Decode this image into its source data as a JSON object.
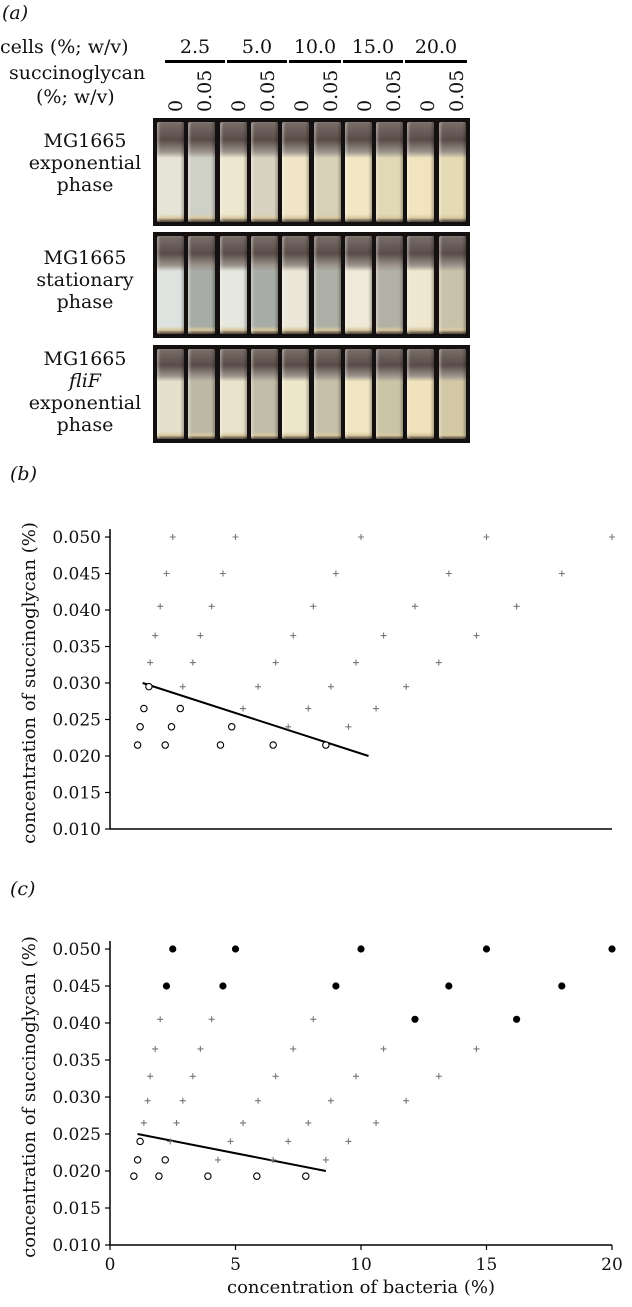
{
  "panel_a": {
    "letter": "(a)",
    "cells_label": "cells (%; w/v)",
    "succ_label_line1": "succinoglycan",
    "succ_label_line2": "(%; w/v)",
    "cell_concs": [
      "2.5",
      "5.0",
      "10.0",
      "15.0",
      "20.0"
    ],
    "succ_concs": [
      "0",
      "0.05"
    ],
    "rows": [
      {
        "line1": "MG1665",
        "line2": "exponential",
        "line3": "phase",
        "line2_italic": false
      },
      {
        "line1": "MG1665",
        "line2": "stationary",
        "line3": "phase",
        "line2_italic": false
      },
      {
        "line1": "MG1665",
        "line2": "fliF",
        "line3": "exponential",
        "line4": "phase",
        "line2_italic": true
      }
    ]
  },
  "chart_data": [
    {
      "type": "scatter",
      "panel": "(b)",
      "title": "",
      "xlabel": "",
      "ylabel": "concentration of succinoglycan (%)",
      "xlim": [
        0,
        20
      ],
      "ylim": [
        0.01,
        0.05
      ],
      "yticks": [
        "0.050",
        "0.045",
        "0.040",
        "0.035",
        "0.030",
        "0.025",
        "0.020",
        "0.015",
        "0.010"
      ],
      "series": [
        {
          "marker": "plus",
          "points": [
            [
              2.5,
              0.05
            ],
            [
              5,
              0.05
            ],
            [
              10,
              0.05
            ],
            [
              15,
              0.05
            ],
            [
              20,
              0.05
            ],
            [
              2.25,
              0.045
            ],
            [
              4.5,
              0.045
            ],
            [
              9,
              0.045
            ],
            [
              13.5,
              0.045
            ],
            [
              18,
              0.045
            ],
            [
              2,
              0.0405
            ],
            [
              4.05,
              0.0405
            ],
            [
              8.1,
              0.0405
            ],
            [
              12.15,
              0.0405
            ],
            [
              16.2,
              0.0405
            ],
            [
              1.8,
              0.0365
            ],
            [
              3.6,
              0.0365
            ],
            [
              7.3,
              0.0365
            ],
            [
              10.9,
              0.0365
            ],
            [
              14.6,
              0.0365
            ],
            [
              1.6,
              0.0328
            ],
            [
              3.3,
              0.0328
            ],
            [
              6.6,
              0.0328
            ],
            [
              9.8,
              0.0328
            ],
            [
              13.1,
              0.0328
            ],
            [
              2.9,
              0.0295
            ],
            [
              5.9,
              0.0295
            ],
            [
              8.8,
              0.0295
            ],
            [
              11.8,
              0.0295
            ],
            [
              5.3,
              0.0265
            ],
            [
              7.9,
              0.0265
            ],
            [
              10.6,
              0.0265
            ],
            [
              7.1,
              0.024
            ],
            [
              9.5,
              0.024
            ]
          ]
        },
        {
          "marker": "open-circle",
          "points": [
            [
              1.55,
              0.0295
            ],
            [
              1.35,
              0.0265
            ],
            [
              2.8,
              0.0265
            ],
            [
              1.2,
              0.024
            ],
            [
              2.45,
              0.024
            ],
            [
              4.85,
              0.024
            ],
            [
              1.1,
              0.0215
            ],
            [
              2.2,
              0.0215
            ],
            [
              4.4,
              0.0215
            ],
            [
              6.5,
              0.0215
            ],
            [
              8.6,
              0.0215
            ]
          ]
        }
      ],
      "trendline": [
        [
          1.3,
          0.03
        ],
        [
          10.3,
          0.02
        ]
      ]
    },
    {
      "type": "scatter",
      "panel": "(c)",
      "title": "",
      "xlabel": "concentration of bacteria (%)",
      "ylabel": "concentration of succinoglycan (%)",
      "xlim": [
        0,
        20
      ],
      "ylim": [
        0.01,
        0.05
      ],
      "xticks": [
        "0",
        "5",
        "10",
        "15",
        "20"
      ],
      "yticks": [
        "0.050",
        "0.045",
        "0.040",
        "0.035",
        "0.030",
        "0.025",
        "0.020",
        "0.015",
        "0.010"
      ],
      "series": [
        {
          "marker": "filled-circle",
          "points": [
            [
              2.5,
              0.05
            ],
            [
              5,
              0.05
            ],
            [
              10,
              0.05
            ],
            [
              15,
              0.05
            ],
            [
              20,
              0.05
            ],
            [
              2.25,
              0.045
            ],
            [
              4.5,
              0.045
            ],
            [
              9,
              0.045
            ],
            [
              13.5,
              0.045
            ],
            [
              18,
              0.045
            ],
            [
              12.15,
              0.0405
            ],
            [
              16.2,
              0.0405
            ]
          ]
        },
        {
          "marker": "plus",
          "points": [
            [
              2,
              0.0405
            ],
            [
              4.05,
              0.0405
            ],
            [
              8.1,
              0.0405
            ],
            [
              1.8,
              0.0365
            ],
            [
              3.6,
              0.0365
            ],
            [
              7.3,
              0.0365
            ],
            [
              10.9,
              0.0365
            ],
            [
              14.6,
              0.0365
            ],
            [
              1.6,
              0.0328
            ],
            [
              3.3,
              0.0328
            ],
            [
              6.6,
              0.0328
            ],
            [
              9.8,
              0.0328
            ],
            [
              13.1,
              0.0328
            ],
            [
              1.5,
              0.0295
            ],
            [
              2.9,
              0.0295
            ],
            [
              5.9,
              0.0295
            ],
            [
              8.8,
              0.0295
            ],
            [
              11.8,
              0.0295
            ],
            [
              1.35,
              0.0265
            ],
            [
              2.65,
              0.0265
            ],
            [
              5.3,
              0.0265
            ],
            [
              7.9,
              0.0265
            ],
            [
              10.6,
              0.0265
            ],
            [
              2.4,
              0.024
            ],
            [
              4.8,
              0.024
            ],
            [
              7.1,
              0.024
            ],
            [
              9.5,
              0.024
            ],
            [
              4.3,
              0.0215
            ],
            [
              6.5,
              0.0215
            ],
            [
              8.6,
              0.0215
            ]
          ]
        },
        {
          "marker": "open-circle",
          "points": [
            [
              1.2,
              0.024
            ],
            [
              1.1,
              0.0215
            ],
            [
              2.2,
              0.0215
            ],
            [
              0.95,
              0.0193
            ],
            [
              1.95,
              0.0193
            ],
            [
              3.9,
              0.0193
            ],
            [
              5.85,
              0.0193
            ],
            [
              7.8,
              0.0193
            ]
          ]
        }
      ],
      "trendline": [
        [
          1.1,
          0.025
        ],
        [
          8.6,
          0.02
        ]
      ]
    }
  ]
}
